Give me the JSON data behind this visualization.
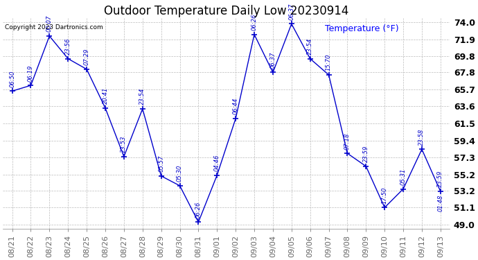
{
  "title": "Outdoor Temperature Daily Low 20230914",
  "copyright": "Copyright 2023 Dartronics.com",
  "line_color": "#0000cc",
  "bg_color": "#ffffff",
  "grid_color": "#bbbbbb",
  "ytick_vals": [
    49.0,
    51.1,
    53.2,
    55.2,
    57.3,
    59.4,
    61.5,
    63.6,
    65.7,
    67.8,
    69.8,
    71.9,
    74.0
  ],
  "ylim": [
    48.5,
    74.5
  ],
  "dates": [
    "08/21",
    "08/22",
    "08/23",
    "08/24",
    "08/25",
    "08/26",
    "08/27",
    "08/28",
    "08/29",
    "08/30",
    "08/31",
    "09/01",
    "09/02",
    "09/03",
    "09/04",
    "09/05",
    "09/06",
    "09/07",
    "09/08",
    "09/09",
    "09/10",
    "09/11",
    "09/12",
    "09/13"
  ],
  "values": [
    65.5,
    66.2,
    72.3,
    69.5,
    68.2,
    63.4,
    57.4,
    63.3,
    55.0,
    53.8,
    49.3,
    55.1,
    62.1,
    72.5,
    67.8,
    73.8,
    69.5,
    67.5,
    57.8,
    56.2,
    51.1,
    53.4,
    58.3,
    53.1
  ],
  "time_labels": [
    "06:50",
    "06:19",
    "00:07",
    "23:56",
    "07:29",
    "20:41",
    "23:53",
    "23:54",
    "05:57",
    "05:30",
    "06:26",
    "04:46",
    "06:44",
    "06:26",
    "06:37",
    "06:37",
    "23:54",
    "15:70",
    "07:18",
    "23:59",
    "17:50",
    "05:31",
    "23:58",
    "23:59"
  ],
  "extra_label": "01:48",
  "temp_label": "Temperature (°F)",
  "title_fontsize": 12,
  "tick_fontsize": 8,
  "anno_fontsize": 6,
  "ytick_fontsize": 9
}
